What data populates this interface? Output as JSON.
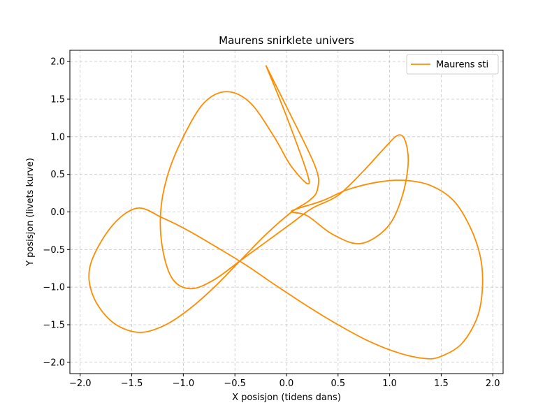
{
  "chart_data": {
    "type": "line",
    "title": "Maurens snirklete univers",
    "xlabel": "X posisjon (tidens dans)",
    "ylabel": "Y posisjon (livets kurve)",
    "xlim": [
      -2.1,
      2.1
    ],
    "ylim": [
      -2.15,
      2.15
    ],
    "xticks": [
      -2.0,
      -1.5,
      -1.0,
      -0.5,
      0.0,
      0.5,
      1.0,
      1.5,
      2.0
    ],
    "yticks": [
      -2.0,
      -1.5,
      -1.0,
      -0.5,
      0.0,
      0.5,
      1.0,
      1.5,
      2.0
    ],
    "xtick_labels": [
      "−2.0",
      "−1.5",
      "−1.0",
      "−0.5",
      "0.0",
      "0.5",
      "1.0",
      "1.5",
      "2.0"
    ],
    "ytick_labels": [
      "−2.0",
      "−1.5",
      "−1.0",
      "−0.5",
      "0.0",
      "0.5",
      "1.0",
      "1.5",
      "2.0"
    ],
    "grid": true,
    "legend_position": "top-right",
    "series": [
      {
        "name": "Maurens sti",
        "color": "#ff8c00",
        "x": [
          -0.2,
          0.02,
          0.22,
          0.05,
          -0.12,
          -0.35,
          -0.58,
          -0.8,
          -1.0,
          -1.15,
          -1.22,
          -1.2,
          -1.1,
          -0.92,
          -0.7,
          -0.45,
          -0.2,
          0.05,
          0.25,
          0.5,
          0.75,
          0.95,
          1.08,
          1.15,
          1.18,
          1.12,
          0.98,
          0.72,
          0.45,
          0.2,
          0.05,
          0.12,
          0.35,
          0.6,
          0.9,
          1.15,
          1.4,
          1.62,
          1.78,
          1.88,
          1.9,
          1.85,
          1.7,
          1.5,
          1.35,
          1.1,
          0.8,
          0.5,
          0.2,
          -0.1,
          -0.4,
          -0.7,
          -0.95,
          -1.2,
          -1.45,
          -1.7,
          -1.9,
          -1.88,
          -1.7,
          -1.45,
          -1.2,
          -0.95,
          -0.7,
          -0.45,
          -0.2,
          0.05,
          0.22,
          0.3,
          0.28,
          0.0,
          -0.2
        ],
        "y": [
          1.95,
          1.2,
          0.4,
          0.6,
          1.0,
          1.45,
          1.6,
          1.45,
          1.0,
          0.5,
          0.0,
          -0.5,
          -0.9,
          -1.02,
          -0.9,
          -0.65,
          -0.4,
          -0.15,
          0.05,
          0.22,
          0.55,
          0.85,
          1.02,
          0.95,
          0.65,
          0.2,
          -0.2,
          -0.42,
          -0.3,
          -0.05,
          0.0,
          0.05,
          0.15,
          0.3,
          0.4,
          0.42,
          0.35,
          0.15,
          -0.2,
          -0.6,
          -1.0,
          -1.4,
          -1.75,
          -1.92,
          -1.95,
          -1.88,
          -1.72,
          -1.5,
          -1.25,
          -0.98,
          -0.7,
          -0.45,
          -0.25,
          -0.08,
          0.05,
          -0.2,
          -0.7,
          -1.1,
          -1.45,
          -1.6,
          -1.52,
          -1.3,
          -1.0,
          -0.65,
          -0.3,
          0.0,
          0.15,
          0.3,
          0.6,
          1.4,
          1.95
        ]
      }
    ]
  }
}
